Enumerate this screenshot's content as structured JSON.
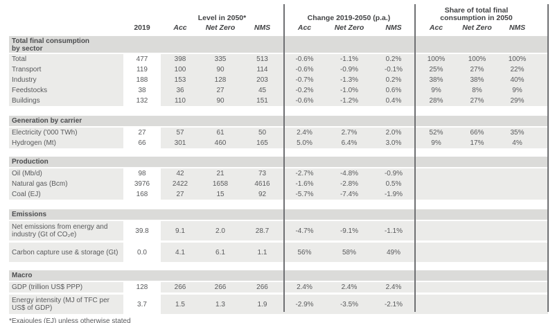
{
  "colors": {
    "section_band": "#dbdbd9",
    "row_background": "#ebebe9",
    "divider": "#6e6f72",
    "text": "#58595b"
  },
  "header": {
    "group_level": "Level in 2050*",
    "group_change": "Change 2019-2050 (p.a.)",
    "group_share_line1": "Share of total final",
    "group_share_line2": "consumption in 2050",
    "col_2019": "2019",
    "col_acc": "Acc",
    "col_netzero": "Net Zero",
    "col_nms": "NMS"
  },
  "table": {
    "sections": [
      {
        "title": "Total final consumption by sector",
        "rows": [
          {
            "label": "Total",
            "level": [
              "477",
              "398",
              "335",
              "513"
            ],
            "change": [
              "-0.6%",
              "-1.1%",
              "0.2%"
            ],
            "share": [
              "100%",
              "100%",
              "100%"
            ]
          },
          {
            "label": "Transport",
            "level": [
              "119",
              "100",
              "90",
              "114"
            ],
            "change": [
              "-0.6%",
              "-0.9%",
              "-0.1%"
            ],
            "share": [
              "25%",
              "27%",
              "22%"
            ]
          },
          {
            "label": "Industry",
            "level": [
              "188",
              "153",
              "128",
              "203"
            ],
            "change": [
              "-0.7%",
              "-1.3%",
              "0.2%"
            ],
            "share": [
              "38%",
              "38%",
              "40%"
            ]
          },
          {
            "label": "Feedstocks",
            "level": [
              "38",
              "36",
              "27",
              "45"
            ],
            "change": [
              "-0.2%",
              "-1.0%",
              "0.6%"
            ],
            "share": [
              "9%",
              "8%",
              "9%"
            ]
          },
          {
            "label": "Buildings",
            "level": [
              "132",
              "110",
              "90",
              "151"
            ],
            "change": [
              "-0.6%",
              "-1.2%",
              "0.4%"
            ],
            "share": [
              "28%",
              "27%",
              "29%"
            ]
          }
        ]
      },
      {
        "title": "Generation by carrier",
        "rows": [
          {
            "label": "Electricity ('000 TWh)",
            "level": [
              "27",
              "57",
              "61",
              "50"
            ],
            "change": [
              "2.4%",
              "2.7%",
              "2.0%"
            ],
            "share": [
              "52%",
              "66%",
              "35%"
            ]
          },
          {
            "label": "Hydrogen (Mt)",
            "level": [
              "66",
              "301",
              "460",
              "165"
            ],
            "change": [
              "5.0%",
              "6.4%",
              "3.0%"
            ],
            "share": [
              "9%",
              "17%",
              "4%"
            ]
          }
        ]
      },
      {
        "title": "Production",
        "rows": [
          {
            "label": "Oil (Mb/d)",
            "level": [
              "98",
              "42",
              "21",
              "73"
            ],
            "change": [
              "-2.7%",
              "-4.8%",
              "-0.9%"
            ],
            "share": [
              "",
              "",
              ""
            ]
          },
          {
            "label": "Natural gas (Bcm)",
            "level": [
              "3976",
              "2422",
              "1658",
              "4616"
            ],
            "change": [
              "-1.6%",
              "-2.8%",
              "0.5%"
            ],
            "share": [
              "",
              "",
              ""
            ]
          },
          {
            "label": "Coal (EJ)",
            "level": [
              "168",
              "27",
              "15",
              "92"
            ],
            "change": [
              "-5.7%",
              "-7.4%",
              "-1.9%"
            ],
            "share": [
              "",
              "",
              ""
            ]
          }
        ]
      },
      {
        "title": "Emissions",
        "rows": [
          {
            "label": "Net emissions from energy and industry (Gt of CO₂e)",
            "level": [
              "39.8",
              "9.1",
              "2.0",
              "28.7"
            ],
            "change": [
              "-4.7%",
              "-9.1%",
              "-1.1%"
            ],
            "share": [
              "",
              "",
              ""
            ]
          },
          {
            "label": "Carbon capture use & storage (Gt)",
            "level": [
              "0.0",
              "4.1",
              "6.1",
              "1.1"
            ],
            "change": [
              "56%",
              "58%",
              "49%"
            ],
            "share": [
              "",
              "",
              ""
            ]
          }
        ]
      },
      {
        "title": "Macro",
        "rows": [
          {
            "label": "GDP (trillion US$ PPP)",
            "level": [
              "128",
              "266",
              "266",
              "266"
            ],
            "change": [
              "2.4%",
              "2.4%",
              "2.4%"
            ],
            "share": [
              "",
              "",
              ""
            ]
          },
          {
            "label": "Energy intensity (MJ of TFC per US$ of GDP)",
            "level": [
              "3.7",
              "1.5",
              "1.3",
              "1.9"
            ],
            "change": [
              "-2.9%",
              "-3.5%",
              "-2.1%"
            ],
            "share": [
              "",
              "",
              ""
            ]
          }
        ]
      }
    ]
  },
  "footnote": "*Exajoules (EJ) unless otherwise stated"
}
